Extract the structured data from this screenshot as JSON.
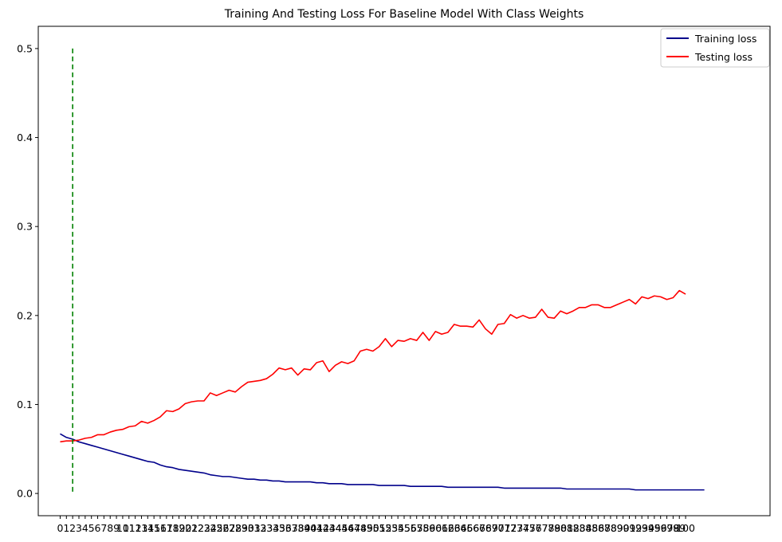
{
  "chart_data": {
    "type": "line",
    "title": "Training And Testing Loss For Baseline Model With Class Weights",
    "xlabel": "",
    "ylabel": "",
    "xlim": [
      -3.5,
      113.5
    ],
    "ylim": [
      -0.025,
      0.525
    ],
    "x_ticks": [
      0,
      1,
      2,
      3,
      4,
      5,
      6,
      7,
      8,
      9,
      10,
      11,
      12,
      13,
      14,
      15,
      16,
      17,
      18,
      19,
      20,
      21,
      22,
      23,
      24,
      25,
      26,
      27,
      28,
      29,
      30,
      31,
      32,
      33,
      34,
      35,
      36,
      37,
      38,
      39,
      40,
      41,
      42,
      43,
      44,
      45,
      46,
      47,
      48,
      49,
      50,
      51,
      52,
      53,
      54,
      55,
      56,
      57,
      58,
      59,
      60,
      61,
      62,
      63,
      64,
      65,
      66,
      67,
      68,
      69,
      70,
      71,
      72,
      73,
      74,
      75,
      76,
      77,
      78,
      79,
      80,
      81,
      82,
      83,
      84,
      85,
      86,
      87,
      88,
      89,
      90,
      91,
      92,
      93,
      94,
      95,
      96,
      97,
      98,
      99,
      100
    ],
    "y_ticks": [
      "0.0",
      "0.1",
      "0.2",
      "0.3",
      "0.4",
      "0.5"
    ],
    "y_tick_values": [
      0.0,
      0.1,
      0.2,
      0.3,
      0.4,
      0.5
    ],
    "grid": false,
    "legend_position": "top-right",
    "vline": {
      "x": 2,
      "ymin": 0.0,
      "ymax": 0.5,
      "color": "#008000",
      "style": "dashed"
    },
    "series": [
      {
        "name": "Training loss",
        "color": "#00008b",
        "values": [
          0.067,
          0.063,
          0.061,
          0.058,
          0.056,
          0.054,
          0.052,
          0.05,
          0.048,
          0.046,
          0.044,
          0.042,
          0.04,
          0.038,
          0.036,
          0.035,
          0.032,
          0.03,
          0.029,
          0.027,
          0.026,
          0.025,
          0.024,
          0.023,
          0.021,
          0.02,
          0.019,
          0.019,
          0.018,
          0.017,
          0.016,
          0.016,
          0.015,
          0.015,
          0.014,
          0.014,
          0.013,
          0.013,
          0.013,
          0.013,
          0.013,
          0.012,
          0.012,
          0.011,
          0.011,
          0.011,
          0.01,
          0.01,
          0.01,
          0.01,
          0.01,
          0.009,
          0.009,
          0.009,
          0.009,
          0.009,
          0.008,
          0.008,
          0.008,
          0.008,
          0.008,
          0.008,
          0.007,
          0.007,
          0.007,
          0.007,
          0.007,
          0.007,
          0.007,
          0.007,
          0.007,
          0.006,
          0.006,
          0.006,
          0.006,
          0.006,
          0.006,
          0.006,
          0.006,
          0.006,
          0.006,
          0.005,
          0.005,
          0.005,
          0.005,
          0.005,
          0.005,
          0.005,
          0.005,
          0.005,
          0.005,
          0.005,
          0.004,
          0.004,
          0.004,
          0.004,
          0.004,
          0.004,
          0.004,
          0.004,
          0.004,
          0.004,
          0.004,
          0.004
        ]
      },
      {
        "name": "Testing loss",
        "color": "#ff0000",
        "values": [
          0.058,
          0.059,
          0.059,
          0.06,
          0.062,
          0.063,
          0.066,
          0.066,
          0.069,
          0.071,
          0.072,
          0.075,
          0.076,
          0.081,
          0.079,
          0.082,
          0.086,
          0.093,
          0.092,
          0.095,
          0.101,
          0.103,
          0.104,
          0.104,
          0.113,
          0.11,
          0.113,
          0.116,
          0.114,
          0.12,
          0.125,
          0.126,
          0.127,
          0.129,
          0.134,
          0.141,
          0.139,
          0.141,
          0.133,
          0.14,
          0.139,
          0.147,
          0.149,
          0.137,
          0.144,
          0.148,
          0.146,
          0.149,
          0.16,
          0.162,
          0.16,
          0.165,
          0.174,
          0.165,
          0.172,
          0.171,
          0.174,
          0.172,
          0.181,
          0.172,
          0.182,
          0.179,
          0.181,
          0.19,
          0.188,
          0.188,
          0.187,
          0.195,
          0.185,
          0.179,
          0.19,
          0.191,
          0.201,
          0.197,
          0.2,
          0.197,
          0.198,
          0.207,
          0.198,
          0.197,
          0.205,
          0.202,
          0.205,
          0.209,
          0.209,
          0.212,
          0.212,
          0.209,
          0.209,
          0.212,
          0.215,
          0.218,
          0.213,
          0.221,
          0.219,
          0.222,
          0.221,
          0.218,
          0.22,
          0.228,
          0.224
        ]
      }
    ]
  }
}
